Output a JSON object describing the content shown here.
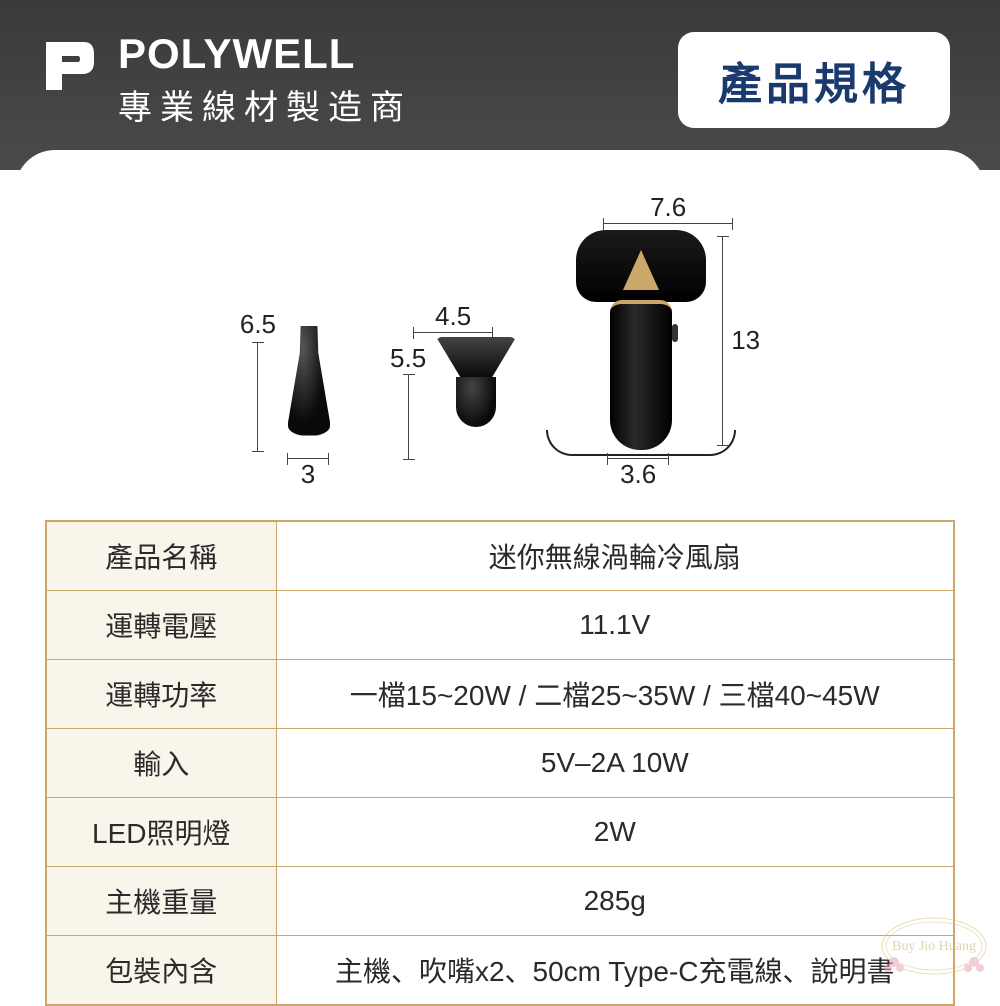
{
  "header": {
    "brand": "POLYWELL",
    "subtitle": "專業線材製造商",
    "badge": "產品規格"
  },
  "dimensions": {
    "nozzle1_height": "6.5",
    "nozzle1_width": "3",
    "nozzle2_top_width": "4.5",
    "nozzle2_height": "5.5",
    "device_head_width": "7.6",
    "device_height": "13",
    "device_handle_width": "3.6"
  },
  "spec": {
    "rows": [
      {
        "label": "產品名稱",
        "value": "迷你無線渦輪冷風扇"
      },
      {
        "label": "運轉電壓",
        "value": "11.1V"
      },
      {
        "label": "運轉功率",
        "value": "一檔15~20W / 二檔25~35W / 三檔40~45W"
      },
      {
        "label": "輸入",
        "value": "5V–2A 10W"
      },
      {
        "label": "LED照明燈",
        "value": "2W"
      },
      {
        "label": "主機重量",
        "value": "285g"
      },
      {
        "label": "包裝內含",
        "value": "主機、吹嘴x2、50cm Type-C充電線、說明書"
      }
    ]
  },
  "colors": {
    "header_bg": "#3f3f3f",
    "badge_text": "#1a3a6e",
    "table_border": "#c9a869",
    "table_label_bg": "#faf5ea",
    "text": "#2a2a2a"
  }
}
